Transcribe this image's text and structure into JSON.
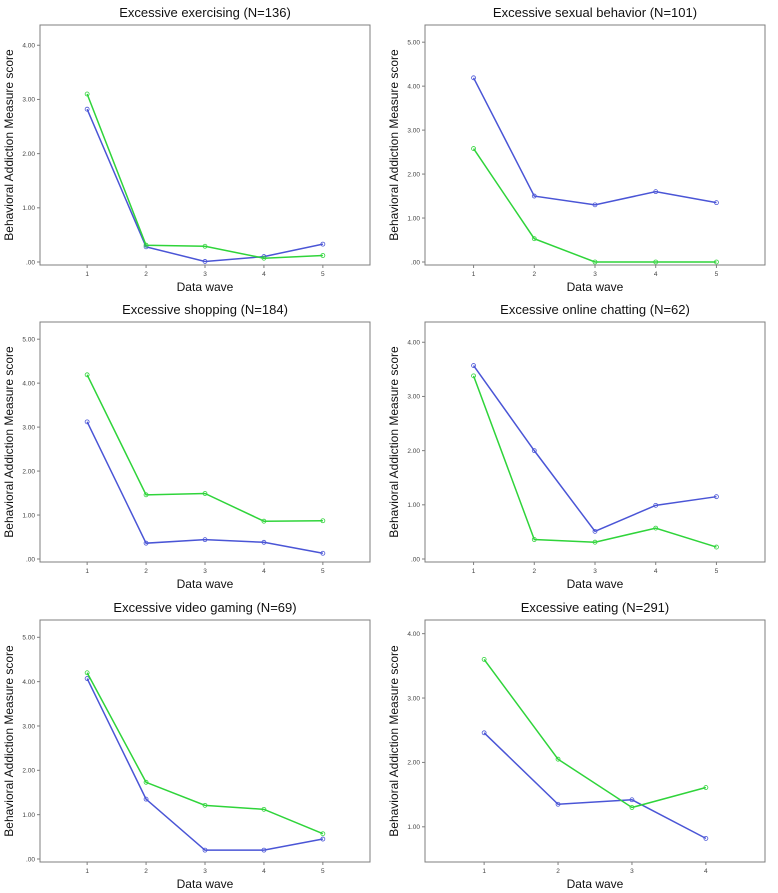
{
  "colors": {
    "blue": "#4a55d6",
    "green": "#2fd43a",
    "axis": "#7f7f7f"
  },
  "chart_data": [
    {
      "type": "line",
      "title": "Excessive exercising (N=136)",
      "xlabel": "Data wave",
      "ylabel": "Behavioral Addiction Measure score",
      "x": [
        "1",
        "2",
        "3",
        "4",
        "5"
      ],
      "ylim": [
        0,
        4.3
      ],
      "yticks": [
        ".00",
        "1.00",
        "2.00",
        "3.00",
        "4.00"
      ],
      "series": [
        {
          "color": "blue",
          "values": [
            2.82,
            0.28,
            0.01,
            0.1,
            0.33
          ]
        },
        {
          "color": "green",
          "values": [
            3.1,
            0.31,
            0.29,
            0.07,
            0.12
          ]
        }
      ]
    },
    {
      "type": "line",
      "title": "Excessive sexual behavior (N=101)",
      "xlabel": "Data wave",
      "ylabel": "Behavioral Addiction Measure score",
      "x": [
        "1",
        "2",
        "3",
        "4",
        "5"
      ],
      "ylim": [
        0,
        5.3
      ],
      "yticks": [
        ".00",
        "1.00",
        "2.00",
        "3.00",
        "4.00",
        "5.00"
      ],
      "series": [
        {
          "color": "blue",
          "values": [
            4.19,
            1.5,
            1.3,
            1.6,
            1.35
          ]
        },
        {
          "color": "green",
          "values": [
            2.58,
            0.53,
            0.0,
            0.0,
            0.0
          ]
        }
      ]
    },
    {
      "type": "line",
      "title": "Excessive shopping (N=184)",
      "xlabel": "Data wave",
      "ylabel": "Behavioral Addiction Measure score",
      "x": [
        "1",
        "2",
        "3",
        "4",
        "5"
      ],
      "ylim": [
        0,
        5.3
      ],
      "yticks": [
        ".00",
        "1.00",
        "2.00",
        "3.00",
        "4.00",
        "5.00"
      ],
      "series": [
        {
          "color": "blue",
          "values": [
            3.12,
            0.36,
            0.44,
            0.38,
            0.13
          ]
        },
        {
          "color": "green",
          "values": [
            4.19,
            1.46,
            1.49,
            0.86,
            0.87
          ]
        }
      ]
    },
    {
      "type": "line",
      "title": "Excessive online chatting (N=62)",
      "xlabel": "Data wave",
      "ylabel": "Behavioral Addiction Measure score",
      "x": [
        "1",
        "2",
        "3",
        "4",
        "5"
      ],
      "ylim": [
        0,
        4.3
      ],
      "yticks": [
        ".00",
        "1.00",
        "2.00",
        "3.00",
        "4.00"
      ],
      "series": [
        {
          "color": "blue",
          "values": [
            3.57,
            2.0,
            0.51,
            0.99,
            1.15
          ]
        },
        {
          "color": "green",
          "values": [
            3.38,
            0.36,
            0.31,
            0.57,
            0.22
          ]
        }
      ]
    },
    {
      "type": "line",
      "title": "Excessive video gaming (N=69)",
      "xlabel": "Data wave",
      "ylabel": "Behavioral Addiction Measure score",
      "x": [
        "1",
        "2",
        "3",
        "4",
        "5"
      ],
      "ylim": [
        0,
        5.3
      ],
      "yticks": [
        ".00",
        "1.00",
        "2.00",
        "3.00",
        "4.00",
        "5.00"
      ],
      "series": [
        {
          "color": "blue",
          "values": [
            4.07,
            1.35,
            0.2,
            0.2,
            0.45
          ]
        },
        {
          "color": "green",
          "values": [
            4.2,
            1.73,
            1.21,
            1.12,
            0.57
          ]
        }
      ]
    },
    {
      "type": "line",
      "title": "Excessive eating (N=291)",
      "xlabel": "Data wave",
      "ylabel": "Behavioral Addiction Measure score",
      "x": [
        "1",
        "2",
        "3",
        "4"
      ],
      "ylim": [
        0.5,
        4.15
      ],
      "yticks": [
        "1.00",
        "2.00",
        "3.00",
        "4.00"
      ],
      "ytick_values": [
        1,
        2,
        3,
        4
      ],
      "series": [
        {
          "color": "blue",
          "values": [
            2.46,
            1.35,
            1.42,
            0.82
          ]
        },
        {
          "color": "green",
          "values": [
            3.6,
            2.05,
            1.3,
            1.61
          ]
        }
      ]
    }
  ]
}
